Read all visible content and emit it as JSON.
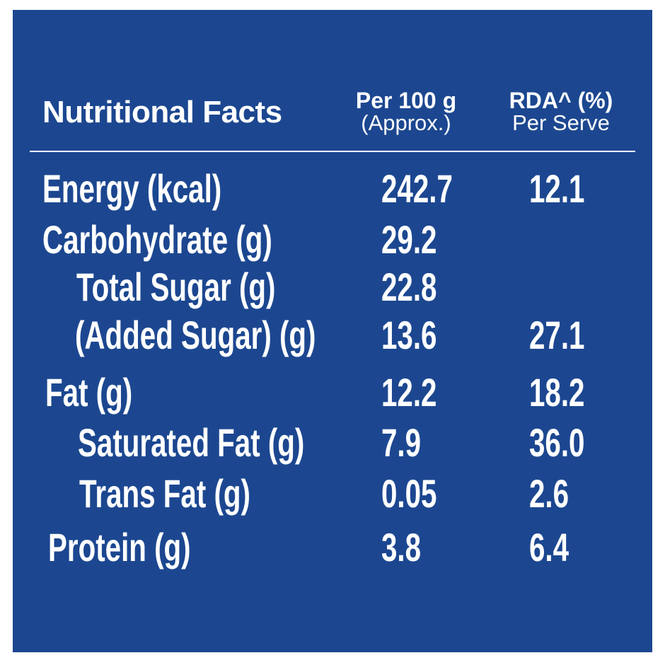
{
  "table": {
    "title": "Nutritional Facts",
    "columns": [
      {
        "main": "Per 100 g",
        "sub": "(Approx.)"
      },
      {
        "main": "RDA^ (%)",
        "sub": "Per Serve"
      }
    ],
    "rows": [
      {
        "label": "Energy (kcal)",
        "per100g": "242.7",
        "rda": "12.1"
      },
      {
        "label": "Carbohydrate (g)",
        "per100g": "29.2",
        "rda": ""
      },
      {
        "label": "Total Sugar (g)",
        "per100g": "22.8",
        "rda": ""
      },
      {
        "label": "(Added Sugar) (g)",
        "per100g": "13.6",
        "rda": "27.1"
      },
      {
        "label": "Fat (g)",
        "per100g": "12.2",
        "rda": "18.2"
      },
      {
        "label": "Saturated Fat (g)",
        "per100g": "7.9",
        "rda": "36.0"
      },
      {
        "label": "Trans Fat (g)",
        "per100g": "0.05",
        "rda": "2.6"
      },
      {
        "label": "Protein (g)",
        "per100g": "3.8",
        "rda": "6.4"
      }
    ]
  },
  "colors": {
    "background": "#1c4790",
    "text": "#ffffff"
  }
}
